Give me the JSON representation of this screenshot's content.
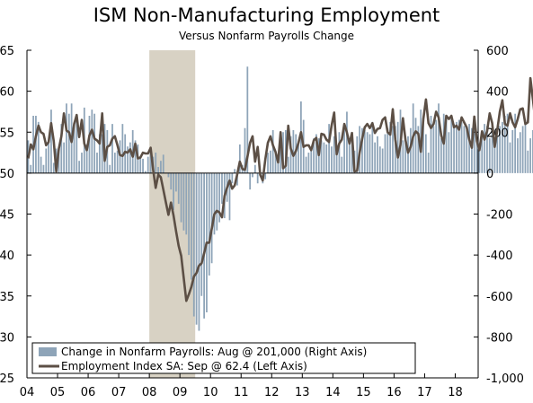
{
  "chart_data": {
    "type": "bar+line",
    "title": "ISM Non-Manufacturing Employment",
    "subtitle": "Versus Nonfarm Payrolls Change",
    "x_tick_labels": [
      "04",
      "05",
      "06",
      "07",
      "08",
      "09",
      "10",
      "11",
      "12",
      "13",
      "14",
      "15",
      "16",
      "17",
      "18"
    ],
    "left_axis": {
      "ticks": [
        25,
        30,
        35,
        40,
        45,
        50,
        55,
        60,
        65
      ],
      "ylim": [
        25,
        65
      ]
    },
    "right_axis": {
      "ticks": [
        "-1,000",
        "-800",
        "-600",
        "-400",
        "-200",
        "0",
        "200",
        "400",
        "600"
      ],
      "ticks_values": [
        -1000,
        -800,
        -600,
        -400,
        -200,
        0,
        200,
        400,
        600
      ],
      "ylim": [
        -1000,
        600
      ]
    },
    "recession_shading": {
      "start": 2008.0,
      "end": 2009.5,
      "color": "#d8d2c4"
    },
    "legend": {
      "position": "bottom-left",
      "bar_label": "Change in Nonfarm Payrolls: Aug @ 201,000 (Right Axis)",
      "line_label": "Employment Index SA: Sep @ 62.4 (Left Axis)"
    },
    "series": [
      {
        "axis": "right",
        "type": "bar",
        "color": "#8ea4b8",
        "start": 2004.0,
        "values": [
          160,
          40,
          280,
          280,
          250,
          80,
          40,
          120,
          150,
          310,
          50,
          120,
          120,
          240,
          150,
          340,
          290,
          340,
          230,
          280,
          60,
          100,
          320,
          140,
          280,
          310,
          290,
          100,
          190,
          190,
          240,
          210,
          40,
          240,
          100,
          110,
          160,
          240,
          190,
          130,
          150,
          210,
          160,
          140,
          80,
          70,
          10,
          80,
          120,
          80,
          100,
          30,
          60,
          90,
          0,
          -20,
          -80,
          -180,
          -90,
          -150,
          -240,
          -280,
          -300,
          -400,
          -520,
          -700,
          -740,
          -770,
          -600,
          -710,
          -680,
          -500,
          -440,
          -300,
          -280,
          -240,
          -150,
          -220,
          -140,
          -230,
          -50,
          20,
          -60,
          140,
          40,
          220,
          520,
          -80,
          -20,
          40,
          -50,
          0,
          -50,
          -30,
          100,
          110,
          210,
          100,
          70,
          160,
          200,
          210,
          80,
          180,
          210,
          190,
          140,
          350,
          260,
          80,
          100,
          110,
          170,
          190,
          170,
          160,
          150,
          140,
          240,
          130,
          180,
          140,
          200,
          80,
          240,
          300,
          140,
          200,
          110,
          180,
          230,
          220,
          210,
          200,
          190,
          250,
          150,
          180,
          130,
          120,
          190,
          220,
          250,
          230,
          230,
          250,
          310,
          160,
          150,
          180,
          220,
          340,
          270,
          230,
          310,
          250,
          190,
          100,
          280,
          230,
          260,
          340,
          170,
          290,
          280,
          200,
          270,
          240,
          250,
          260,
          250,
          230,
          210,
          240,
          220,
          230,
          160,
          150,
          200,
          240,
          230,
          170,
          230,
          150,
          180,
          230,
          250,
          280,
          290,
          150,
          210,
          290,
          170,
          200,
          230,
          260,
          110,
          170,
          210,
          140,
          200,
          190,
          240,
          300,
          230,
          280,
          210,
          270,
          140,
          210,
          220,
          220,
          210,
          230,
          180,
          230,
          100,
          140,
          200,
          220,
          290,
          290,
          170,
          240,
          190,
          200
        ],
        "name": "Change in Nonfarm Payrolls"
      },
      {
        "axis": "left",
        "type": "line",
        "color": "#5c4f45",
        "start": 2004.0,
        "values": [
          51.8,
          53.5,
          52.9,
          54.5,
          55.8,
          55.0,
          54.8,
          53.4,
          53.8,
          56.1,
          53.9,
          50.2,
          53.0,
          54.5,
          57.3,
          55.2,
          55.0,
          53.8,
          56.0,
          57.1,
          54.4,
          56.5,
          53.6,
          52.8,
          54.6,
          55.3,
          54.2,
          54.0,
          53.6,
          57.3,
          51.5,
          53.2,
          53.4,
          54.2,
          54.5,
          53.4,
          52.2,
          52.1,
          52.6,
          52.5,
          52.9,
          52.0,
          53.6,
          51.8,
          51.9,
          52.5,
          52.4,
          52.4,
          53.1,
          50.4,
          48.2,
          49.8,
          49.5,
          48.0,
          46.4,
          44.9,
          46.4,
          44.8,
          42.9,
          41.1,
          39.9,
          37.2,
          34.4,
          35.2,
          36.1,
          37.4,
          37.8,
          38.7,
          39.0,
          40.2,
          41.5,
          41.5,
          43.2,
          45.0,
          45.4,
          45.2,
          44.6,
          47.2,
          48.2,
          49.1,
          48.1,
          48.5,
          49.9,
          51.4,
          50.5,
          50.4,
          52.0,
          53.7,
          54.5,
          51.4,
          53.2,
          49.8,
          49.1,
          51.7,
          53.7,
          54.5,
          53.4,
          52.6,
          51.3,
          55.0,
          50.6,
          50.9,
          55.8,
          53.0,
          52.1,
          52.7,
          53.7,
          55.0,
          53.2,
          53.4,
          53.4,
          52.8,
          54.0,
          54.3,
          52.2,
          54.8,
          54.7,
          54.1,
          53.8,
          55.8,
          57.4,
          52.3,
          53.6,
          54.1,
          56.0,
          55.0,
          53.6,
          54.9,
          50.2,
          50.3,
          52.5,
          54.2,
          55.6,
          56.0,
          55.5,
          56.1,
          54.9,
          55.4,
          55.5,
          56.5,
          56.8,
          55.0,
          54.7,
          57.8,
          54.1,
          51.9,
          53.4,
          56.7,
          54.0,
          52.5,
          53.2,
          54.5,
          55.1,
          54.8,
          52.6,
          56.6,
          59.0,
          56.1,
          55.5,
          56.0,
          57.5,
          56.8,
          54.6,
          53.6,
          57.0,
          56.6,
          57.0,
          55.6,
          55.8,
          55.3,
          56.8,
          56.2,
          55.6,
          54.1,
          53.1,
          56.9,
          53.9,
          52.8,
          55.1,
          54.1,
          55.1,
          57.3,
          56.1,
          53.2,
          55.3,
          57.5,
          58.9,
          56.0,
          55.8,
          57.3,
          56.2,
          55.6,
          56.6,
          57.8,
          57.9,
          56.0,
          56.2,
          61.6,
          58.9,
          56.2,
          54.8,
          53.8,
          54.7,
          56.3,
          59.5,
          59.1,
          56.8,
          59.5,
          57.4,
          56.1,
          56.8,
          55.3,
          56.8,
          61.6,
          52.4,
          62.4
        ],
        "name": "Employment Index SA"
      }
    ]
  }
}
